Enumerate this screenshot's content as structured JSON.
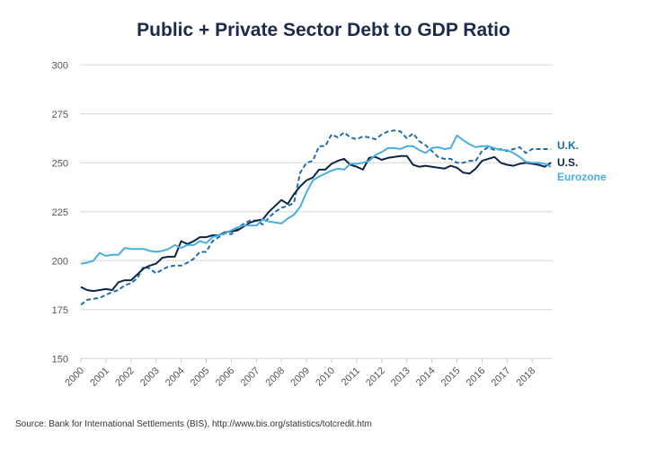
{
  "chart_data": {
    "type": "line",
    "title": "Public + Private Sector Debt to GDP Ratio",
    "source": "Source: Bank for International Settlements (BIS), http://www.bis.org/statistics/totcredit.htm",
    "xlabel": "",
    "ylabel": "",
    "ylim": [
      150,
      300
    ],
    "yticks": [
      150,
      175,
      200,
      225,
      250,
      275,
      300
    ],
    "xticks": [
      "2000",
      "2001",
      "2002",
      "2003",
      "2004",
      "2005",
      "2006",
      "2007",
      "2008",
      "2009",
      "2010",
      "2011",
      "2012",
      "2013",
      "2014",
      "2015",
      "2016",
      "2017",
      "2018"
    ],
    "x_start": 2000,
    "x_step": 0.25,
    "grid": true,
    "legend_placement": "right (inline labels)",
    "series": [
      {
        "name": "U.K.",
        "color": "#1f6ea8",
        "style": "dashed",
        "values": [
          177.5,
          180,
          180.5,
          181,
          182.5,
          184,
          185,
          187.5,
          188.5,
          191,
          197,
          196,
          193.5,
          195.5,
          197,
          197.5,
          197.5,
          199,
          201,
          204.5,
          204.5,
          210,
          212,
          214,
          213.5,
          216.5,
          219,
          220.5,
          220.5,
          218.5,
          222,
          225,
          227,
          228,
          229.5,
          245,
          250,
          251,
          258.5,
          258.5,
          264.5,
          263,
          265.5,
          263,
          262,
          263.5,
          263,
          262,
          264.5,
          266,
          266.5,
          266,
          262.5,
          265,
          261,
          259,
          256,
          253,
          252,
          252,
          250,
          250,
          251,
          251,
          256,
          258,
          256.5,
          257,
          256,
          257,
          258,
          255,
          257,
          257,
          257,
          257
        ]
      },
      {
        "name": "U.S.",
        "color": "#0e2645",
        "style": "solid",
        "values": [
          186.5,
          185,
          184.5,
          185,
          185.5,
          185,
          189,
          190,
          190,
          193,
          196,
          197.5,
          198.5,
          201.5,
          202,
          202,
          210,
          208.5,
          210,
          212,
          212,
          213,
          213,
          214.5,
          215,
          215.5,
          217.5,
          219.5,
          220.5,
          221,
          225,
          228,
          231,
          229,
          234,
          238,
          241,
          242.5,
          246.5,
          246.5,
          249.5,
          251,
          252,
          249,
          248,
          246.5,
          252.5,
          253,
          251.5,
          252.5,
          253,
          253.5,
          253.5,
          249,
          248,
          248.5,
          248,
          247.5,
          247,
          248.5,
          247.5,
          245,
          244.5,
          247,
          251,
          252,
          253,
          250,
          249,
          248.5,
          249.5,
          250,
          249.5,
          249,
          248,
          250
        ]
      },
      {
        "name": "Eurozone",
        "color": "#4aaee0",
        "style": "solid",
        "values": [
          198.5,
          199,
          200,
          204,
          202.5,
          203,
          203,
          206.5,
          206,
          206,
          206,
          205,
          204.5,
          205,
          206,
          208,
          206.5,
          208,
          208,
          210,
          209,
          212,
          213,
          214,
          215.5,
          217,
          218,
          218,
          218,
          221,
          220,
          219.5,
          219,
          221.5,
          223.5,
          227.5,
          235,
          241,
          243,
          244.5,
          246,
          247,
          246.5,
          249.5,
          249.5,
          250,
          251,
          254,
          255.5,
          257.5,
          257.5,
          257,
          258.5,
          258.5,
          256.5,
          255,
          257.5,
          258,
          257,
          257.5,
          264,
          261.5,
          259.5,
          258,
          258.5,
          258.5,
          257.5,
          256.5,
          256.5,
          255,
          253,
          250.5,
          250,
          250,
          249.5,
          248
        ]
      }
    ]
  }
}
